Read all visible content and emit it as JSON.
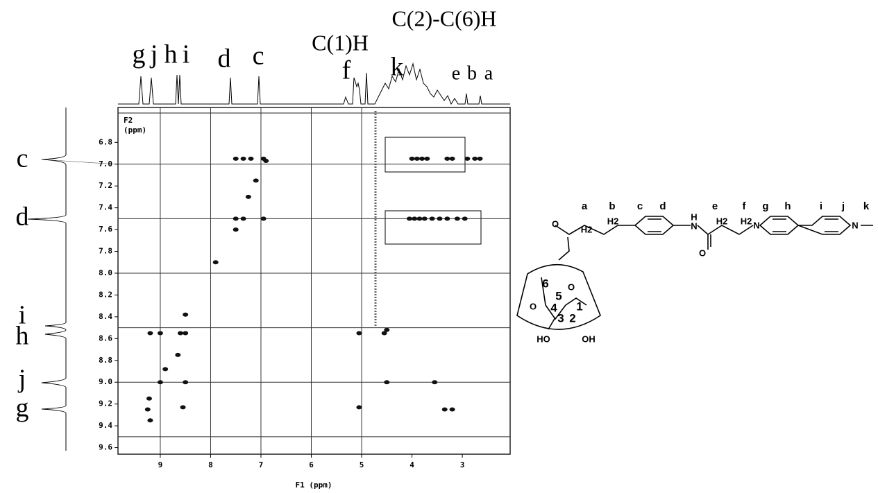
{
  "chart_data": {
    "type": "scatter",
    "x_label": "F1 (ppm)",
    "y_label": "F2",
    "y_unit": "(ppm)",
    "xlim": [
      9.84,
      2.05
    ],
    "ylim": [
      6.48,
      9.66
    ],
    "xticks": [
      9,
      8,
      7,
      6,
      5,
      4,
      3
    ],
    "yticks": [
      6.8,
      {
        "value": 7,
        "label": "7.0"
      },
      7.2,
      7.4,
      7.6,
      7.8,
      {
        "value": 8,
        "label": "8.0"
      },
      8.2,
      8.4,
      8.6,
      8.8,
      {
        "value": 9,
        "label": "9.0"
      },
      9.2,
      9.4,
      9.6
    ],
    "xgrid": [
      9,
      8,
      7,
      6,
      5
    ],
    "ygrid": [
      7.0,
      7.5,
      8.0,
      8.5,
      9.0,
      9.5
    ],
    "color": "#111111",
    "x": [
      7.5,
      7.35,
      7.2,
      6.95,
      6.9,
      4.0,
      3.9,
      3.8,
      3.7,
      3.3,
      3.2,
      2.9,
      2.75,
      2.65,
      7.5,
      7.35,
      6.95,
      4.05,
      3.95,
      3.85,
      3.75,
      3.6,
      3.45,
      3.3,
      3.1,
      2.95,
      7.25,
      7.1,
      7.5,
      7.9,
      9.2,
      9.0,
      8.6,
      8.5,
      5.05,
      4.55,
      4.5,
      8.5,
      8.9,
      8.65,
      9.0,
      8.5,
      4.5,
      3.55,
      9.25,
      8.55,
      5.05,
      3.35,
      3.2,
      9.2,
      9.22
    ],
    "y": [
      6.95,
      6.95,
      6.95,
      6.95,
      6.97,
      6.95,
      6.95,
      6.95,
      6.95,
      6.95,
      6.95,
      6.95,
      6.95,
      6.95,
      7.5,
      7.5,
      7.5,
      7.5,
      7.5,
      7.5,
      7.5,
      7.5,
      7.5,
      7.5,
      7.5,
      7.5,
      7.3,
      7.15,
      7.6,
      7.9,
      8.55,
      8.55,
      8.55,
      8.55,
      8.55,
      8.55,
      8.52,
      8.38,
      8.88,
      8.75,
      9.0,
      9.0,
      9.0,
      9.0,
      9.25,
      9.23,
      9.23,
      9.25,
      9.25,
      9.35,
      9.15
    ],
    "top_labels": [
      "g",
      "j",
      "h",
      "i",
      "d",
      "c",
      "C(1)H",
      "f",
      "k",
      "C(2)-C(6)H",
      "e",
      "b",
      "a"
    ],
    "left_labels": [
      "c",
      "d",
      "i",
      "h",
      "j",
      "g"
    ]
  },
  "structure": {
    "letters": [
      "a",
      "b",
      "c",
      "d",
      "e",
      "f",
      "g",
      "h",
      "i",
      "j",
      "k"
    ],
    "atoms": [
      "O",
      "H2",
      "H2",
      "H",
      "N",
      "H2",
      "H2",
      "O",
      "N",
      "N",
      "O",
      "6",
      "5",
      "O",
      "4",
      "1",
      "3",
      "2",
      "HO",
      "OH"
    ]
  }
}
